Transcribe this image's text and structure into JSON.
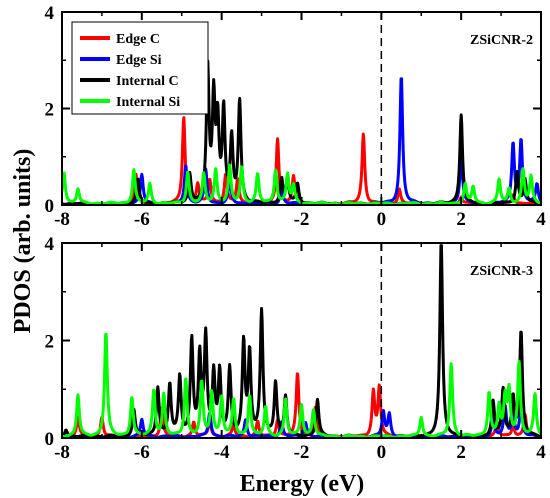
{
  "chart_data": {
    "type": "line",
    "xlabel": "Energy (eV)",
    "ylabel": "PDOS (arb. units)",
    "xlim": [
      -8,
      4
    ],
    "ylim": [
      0,
      4
    ],
    "x_ticks": [
      -8,
      -6,
      -4,
      -2,
      0,
      2,
      4
    ],
    "y_ticks": [
      0,
      2,
      4
    ],
    "fermi_line_x": 0,
    "legend_position": "top-left",
    "series_styles": [
      {
        "name": "Edge C",
        "color": "#ff0000"
      },
      {
        "name": "Edge  Si",
        "color": "#0000ff"
      },
      {
        "name": "Internal C",
        "color": "#000000"
      },
      {
        "name": "Internal Si",
        "color": "#00ff00"
      }
    ],
    "panels": [
      {
        "label": "ZSiCNR-2",
        "series": [
          {
            "name": "Edge C",
            "peaks": [
              [
                -6.15,
                0.6
              ],
              [
                -4.95,
                1.8
              ],
              [
                -4.6,
                0.4
              ],
              [
                -4.3,
                0.5
              ],
              [
                -3.9,
                0.6
              ],
              [
                -3.6,
                0.5
              ],
              [
                -2.6,
                1.35
              ],
              [
                -2.2,
                0.55
              ],
              [
                -0.45,
                1.45
              ],
              [
                0.45,
                0.3
              ],
              [
                2.0,
                0.15
              ],
              [
                3.3,
                0.2
              ]
            ]
          },
          {
            "name": "Edge  Si",
            "peaks": [
              [
                -6.0,
                0.6
              ],
              [
                -4.9,
                0.8
              ],
              [
                -4.4,
                0.7
              ],
              [
                -3.8,
                0.5
              ],
              [
                -2.5,
                0.3
              ],
              [
                0.5,
                2.65
              ],
              [
                2.0,
                1.0
              ],
              [
                3.3,
                1.25
              ],
              [
                3.5,
                1.3
              ],
              [
                3.9,
                0.4
              ]
            ]
          },
          {
            "name": "Internal C",
            "peaks": [
              [
                -6.1,
                0.5
              ],
              [
                -4.8,
                0.6
              ],
              [
                -4.35,
                2.75
              ],
              [
                -4.2,
                2.1
              ],
              [
                -4.1,
                1.6
              ],
              [
                -3.95,
                1.9
              ],
              [
                -3.75,
                1.3
              ],
              [
                -3.55,
                2.1
              ],
              [
                -2.5,
                0.5
              ],
              [
                -2.35,
                0.5
              ],
              [
                -2.1,
                0.4
              ],
              [
                2.0,
                1.85
              ],
              [
                3.4,
                0.65
              ],
              [
                3.6,
                0.5
              ]
            ]
          },
          {
            "name": "Internal Si",
            "peaks": [
              [
                -7.95,
                0.65
              ],
              [
                -7.6,
                0.3
              ],
              [
                -6.2,
                0.7
              ],
              [
                -5.8,
                0.4
              ],
              [
                -4.85,
                0.65
              ],
              [
                -4.45,
                0.6
              ],
              [
                -4.15,
                0.7
              ],
              [
                -3.8,
                0.75
              ],
              [
                -3.5,
                0.75
              ],
              [
                -3.1,
                0.6
              ],
              [
                -2.65,
                0.7
              ],
              [
                -2.35,
                0.6
              ],
              [
                -2.2,
                0.35
              ],
              [
                2.1,
                0.4
              ],
              [
                2.3,
                0.35
              ],
              [
                2.95,
                0.5
              ],
              [
                3.2,
                0.3
              ],
              [
                3.55,
                0.7
              ],
              [
                3.75,
                0.55
              ]
            ]
          }
        ]
      },
      {
        "label": "ZSiCNR-3",
        "series": [
          {
            "name": "Edge C",
            "peaks": [
              [
                -7.6,
                0.4
              ],
              [
                -7.0,
                0.4
              ],
              [
                -5.5,
                0.6
              ],
              [
                -4.7,
                0.3
              ],
              [
                -4.3,
                0.35
              ],
              [
                -3.7,
                0.25
              ],
              [
                -3.1,
                0.3
              ],
              [
                -2.6,
                0.35
              ],
              [
                -2.1,
                1.3
              ],
              [
                -1.65,
                0.6
              ],
              [
                -0.2,
                0.9
              ],
              [
                -0.05,
                1.0
              ],
              [
                2.9,
                0.3
              ],
              [
                3.3,
                0.25
              ],
              [
                3.6,
                0.45
              ]
            ]
          },
          {
            "name": "Edge  Si",
            "peaks": [
              [
                -6.0,
                0.35
              ],
              [
                -4.3,
                0.5
              ],
              [
                -3.4,
                0.35
              ],
              [
                -2.5,
                0.3
              ],
              [
                -1.9,
                0.3
              ],
              [
                0.05,
                0.5
              ],
              [
                0.2,
                0.45
              ],
              [
                2.8,
                0.4
              ],
              [
                3.1,
                0.6
              ],
              [
                3.3,
                0.5
              ],
              [
                3.5,
                0.6
              ]
            ]
          },
          {
            "name": "Internal C",
            "peaks": [
              [
                -7.9,
                0.15
              ],
              [
                -6.2,
                0.55
              ],
              [
                -5.6,
                1.0
              ],
              [
                -5.3,
                1.05
              ],
              [
                -5.05,
                1.2
              ],
              [
                -4.75,
                1.95
              ],
              [
                -4.55,
                1.6
              ],
              [
                -4.4,
                2.0
              ],
              [
                -4.2,
                1.25
              ],
              [
                -4.05,
                1.3
              ],
              [
                -3.8,
                1.35
              ],
              [
                -3.45,
                1.9
              ],
              [
                -3.3,
                1.7
              ],
              [
                -3.0,
                2.55
              ],
              [
                -2.65,
                1.1
              ],
              [
                -2.4,
                0.8
              ],
              [
                -1.6,
                0.75
              ],
              [
                1.5,
                4.0
              ],
              [
                2.8,
                0.7
              ],
              [
                3.05,
                0.95
              ],
              [
                3.3,
                0.8
              ],
              [
                3.5,
                2.15
              ]
            ]
          },
          {
            "name": "Internal Si",
            "peaks": [
              [
                -7.6,
                0.85
              ],
              [
                -6.9,
                2.15
              ],
              [
                -6.25,
                0.8
              ],
              [
                -5.7,
                0.95
              ],
              [
                -5.45,
                0.85
              ],
              [
                -4.9,
                1.2
              ],
              [
                -4.5,
                1.1
              ],
              [
                -4.25,
                0.9
              ],
              [
                -4.0,
                0.8
              ],
              [
                -3.7,
                0.75
              ],
              [
                -3.3,
                0.85
              ],
              [
                -2.9,
                0.6
              ],
              [
                -2.4,
                0.75
              ],
              [
                -2.0,
                0.65
              ],
              [
                -1.7,
                0.55
              ],
              [
                1.0,
                0.4
              ],
              [
                1.75,
                1.5
              ],
              [
                2.7,
                0.9
              ],
              [
                2.95,
                0.6
              ],
              [
                3.1,
                0.75
              ],
              [
                3.2,
                0.9
              ],
              [
                3.45,
                1.5
              ],
              [
                3.85,
                0.85
              ]
            ]
          }
        ]
      }
    ]
  }
}
